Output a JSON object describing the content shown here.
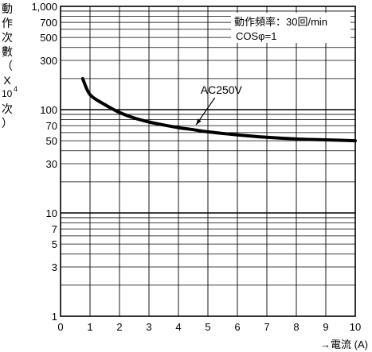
{
  "chart_data": {
    "type": "line",
    "xlabel": "→電流 (A)",
    "ylabel": "動作次數（X10⁴次）",
    "ylabel_chars": [
      "動",
      "作",
      "次",
      "數",
      "（",
      "X"
    ],
    "ylabel_unit": "10",
    "ylabel_unit_exp": "4",
    "ylabel_tail": [
      "次",
      "）"
    ],
    "xlim": [
      0,
      10
    ],
    "ylim": [
      1,
      1000
    ],
    "yscale": "log",
    "grid": true,
    "x_ticks": [
      "0",
      "1",
      "2",
      "3",
      "4",
      "5",
      "6",
      "7",
      "8",
      "9",
      "10"
    ],
    "y_ticks": [
      {
        "value": 1,
        "label": "1"
      },
      {
        "value": 3,
        "label": "3"
      },
      {
        "value": 5,
        "label": "5"
      },
      {
        "value": 7,
        "label": "7"
      },
      {
        "value": 10,
        "label": "10"
      },
      {
        "value": 30,
        "label": "30"
      },
      {
        "value": 50,
        "label": "50"
      },
      {
        "value": 70,
        "label": "70"
      },
      {
        "value": 100,
        "label": "100"
      },
      {
        "value": 300,
        "label": "300"
      },
      {
        "value": 500,
        "label": "500"
      },
      {
        "value": 700,
        "label": "700"
      },
      {
        "value": 1000,
        "label": "1,000"
      }
    ],
    "annotations": [
      "動作頻率：30回/min",
      "COSφ=1"
    ],
    "series": [
      {
        "name": "AC250V",
        "color": "#000000",
        "x": [
          0.75,
          1.0,
          1.5,
          2.0,
          2.5,
          3.0,
          3.5,
          4.0,
          4.5,
          5.0,
          6.0,
          7.0,
          8.0,
          9.0,
          10.0
        ],
        "y": [
          200,
          140,
          112,
          94,
          83,
          76,
          71,
          67,
          64,
          61,
          57,
          54,
          52,
          51,
          50
        ]
      }
    ]
  }
}
